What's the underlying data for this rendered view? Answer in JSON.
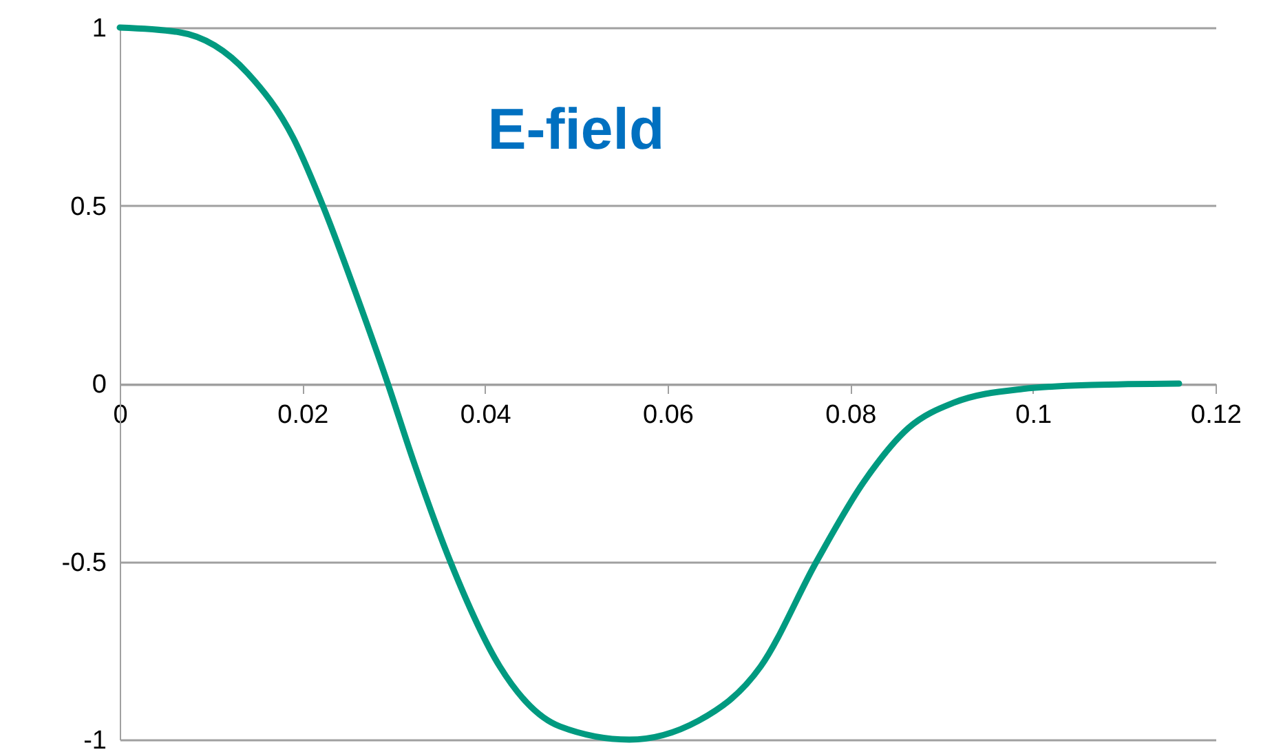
{
  "chart_data": {
    "type": "line",
    "title": "E-field",
    "x": [
      0,
      0.0065,
      0.014,
      0.019,
      0.0223,
      0.0261,
      0.0293,
      0.0321,
      0.0362,
      0.0416,
      0.0482,
      0.0558,
      0.0633,
      0.0702,
      0.0763,
      0.0814,
      0.0864,
      0.0913,
      0.0989,
      0.1064,
      0.116
    ],
    "series": [
      {
        "color": "#009a80",
        "values": [
          1,
          0.987,
          0.872,
          0.69,
          0.496,
          0.236,
          0.004,
          -0.213,
          -0.5,
          -0.794,
          -0.963,
          -1,
          -0.948,
          -0.794,
          -0.5,
          -0.279,
          -0.124,
          -0.054,
          -0.015,
          -0.004,
          0
        ]
      }
    ],
    "xlim": [
      0,
      0.12
    ],
    "xticks": [
      0,
      0.02,
      0.04,
      0.06,
      0.08,
      0.1,
      0.12
    ],
    "ylim": [
      -1,
      1
    ],
    "yticks": [
      -1,
      -0.5,
      0,
      0.5,
      1
    ],
    "grid": "y",
    "marker": "none",
    "line_style": "solid"
  }
}
